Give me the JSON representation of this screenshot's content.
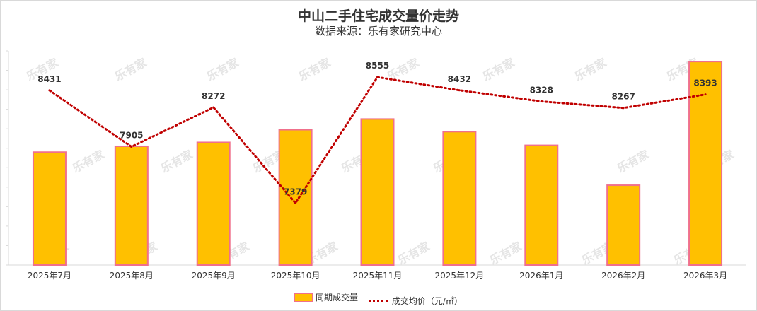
{
  "chart_data": {
    "type": "bar",
    "title": "中山二手住宅成交量价走势",
    "subtitle": "数据来源：乐有家研究中心",
    "categories": [
      "2025年7月",
      "2025年8月",
      "2025年9月",
      "2025年10月",
      "2025年11月",
      "2025年12月",
      "2026年1月",
      "2026年2月",
      "2026年3月"
    ],
    "series": [
      {
        "name": "同期成交量",
        "kind": "bar",
        "color": "#FFC000",
        "border": "#F0708C",
        "values": [
          580,
          610,
          630,
          695,
          750,
          685,
          615,
          410,
          1045
        ]
      },
      {
        "name": "成交均价（元/㎡）",
        "kind": "line",
        "style": "dotted",
        "color": "#C00000",
        "values": [
          8431,
          7905,
          8272,
          7379,
          8555,
          8432,
          8328,
          8267,
          8393
        ]
      }
    ],
    "bar_axis_range": [
      0,
      1100
    ],
    "price_axis_range": [
      6800,
      8800
    ],
    "grid": false,
    "legend_position": "bottom",
    "watermark": "乐有家"
  }
}
